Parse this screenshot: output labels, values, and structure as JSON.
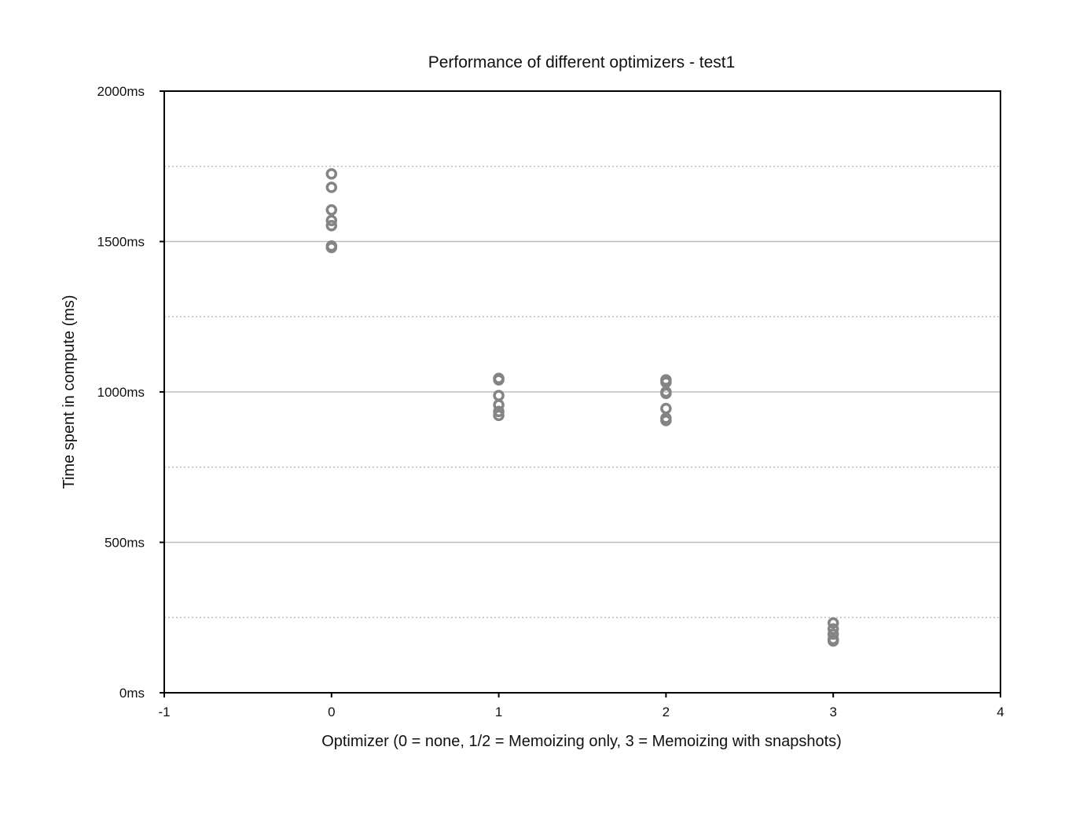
{
  "chart_data": {
    "type": "scatter",
    "title": "Performance of different optimizers - test1",
    "xlabel": "Optimizer (0 = none, 1/2 = Memoizing only, 3 = Memoizing with snapshots)",
    "ylabel": "Time spent in compute (ms)",
    "xlim": [
      -1,
      4
    ],
    "ylim": [
      0,
      2000
    ],
    "x_ticks": [
      {
        "value": -1,
        "label": "-1"
      },
      {
        "value": 0,
        "label": "0"
      },
      {
        "value": 1,
        "label": "1"
      },
      {
        "value": 2,
        "label": "2"
      },
      {
        "value": 3,
        "label": "3"
      },
      {
        "value": 4,
        "label": "4"
      }
    ],
    "y_ticks": [
      {
        "value": 0,
        "label": "0ms"
      },
      {
        "value": 500,
        "label": "500ms"
      },
      {
        "value": 1000,
        "label": "1000ms"
      },
      {
        "value": 1500,
        "label": "1500ms"
      },
      {
        "value": 2000,
        "label": "2000ms"
      }
    ],
    "grid": {
      "major_y": [
        500,
        1000,
        1500
      ],
      "minor_y": [
        250,
        750,
        1250,
        1750
      ]
    },
    "legend": "none",
    "marker_color": "#848484",
    "series": [
      {
        "points": [
          {
            "x": 0,
            "y": 1725
          },
          {
            "x": 0,
            "y": 1680
          },
          {
            "x": 0,
            "y": 1605
          },
          {
            "x": 0,
            "y": 1570
          },
          {
            "x": 0,
            "y": 1553
          },
          {
            "x": 0,
            "y": 1485
          },
          {
            "x": 0,
            "y": 1480
          },
          {
            "x": 1,
            "y": 1045
          },
          {
            "x": 1,
            "y": 1040
          },
          {
            "x": 1,
            "y": 988
          },
          {
            "x": 1,
            "y": 957
          },
          {
            "x": 1,
            "y": 935
          },
          {
            "x": 1,
            "y": 922
          },
          {
            "x": 2,
            "y": 1040
          },
          {
            "x": 2,
            "y": 1032
          },
          {
            "x": 2,
            "y": 1000
          },
          {
            "x": 2,
            "y": 995
          },
          {
            "x": 2,
            "y": 945
          },
          {
            "x": 2,
            "y": 913
          },
          {
            "x": 2,
            "y": 905
          },
          {
            "x": 3,
            "y": 232
          },
          {
            "x": 3,
            "y": 212
          },
          {
            "x": 3,
            "y": 195
          },
          {
            "x": 3,
            "y": 178
          },
          {
            "x": 3,
            "y": 172
          }
        ]
      }
    ]
  }
}
